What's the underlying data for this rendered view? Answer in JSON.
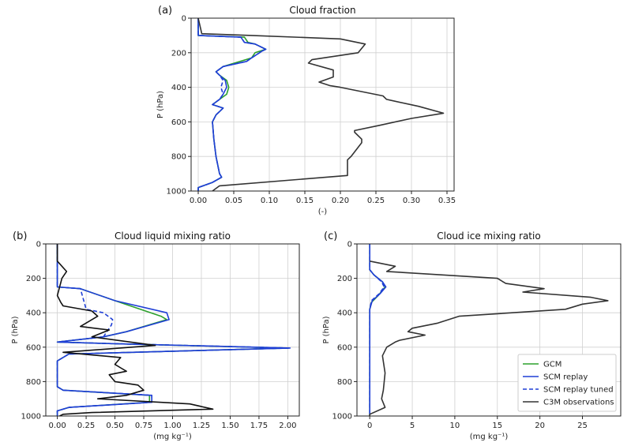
{
  "chart_data": [
    {
      "type": "line",
      "panel_label": "(a)",
      "title": "Cloud fraction",
      "xlabel": "(-)",
      "ylabel": "P (hPa)",
      "xlim": [
        -0.01,
        0.36
      ],
      "ylim": [
        1000,
        0
      ],
      "xticks": [
        0.0,
        0.05,
        0.1,
        0.15,
        0.2,
        0.25,
        0.3,
        0.35
      ],
      "xtick_labels": [
        "0.00",
        "0.05",
        "0.10",
        "0.15",
        "0.20",
        "0.25",
        "0.30",
        "0.35"
      ],
      "yticks": [
        0,
        200,
        400,
        600,
        800,
        1000
      ],
      "ytick_labels": [
        "0",
        "200",
        "400",
        "600",
        "800",
        "1000"
      ],
      "grid": true,
      "series": [
        {
          "key": "gcm",
          "color": "#2ca02c",
          "dash": false,
          "x": [
            0,
            0,
            0.065,
            0.07,
            0.08,
            0.095,
            0.08,
            0.075,
            0.035,
            0.025,
            0.03,
            0.04,
            0.043,
            0.04,
            0.03,
            0.02,
            0.035,
            0.03,
            0.025,
            0.02,
            0.022,
            0.025,
            0.03,
            0.033,
            0.02,
            0,
            0
          ],
          "y": [
            0,
            100,
            110,
            140,
            150,
            180,
            200,
            230,
            280,
            310,
            330,
            360,
            400,
            440,
            470,
            500,
            520,
            540,
            560,
            600,
            700,
            800,
            900,
            920,
            950,
            980,
            1000
          ]
        },
        {
          "key": "scm",
          "color": "#1f3fd6",
          "dash": false,
          "x": [
            0,
            0,
            0.06,
            0.065,
            0.08,
            0.095,
            0.09,
            0.075,
            0.068,
            0.035,
            0.025,
            0.03,
            0.038,
            0.04,
            0.035,
            0.03,
            0.02,
            0.035,
            0.03,
            0.025,
            0.02,
            0.022,
            0.025,
            0.03,
            0.033,
            0.02,
            0,
            0
          ],
          "y": [
            0,
            100,
            110,
            140,
            150,
            180,
            190,
            230,
            250,
            280,
            310,
            330,
            360,
            400,
            440,
            470,
            500,
            520,
            540,
            560,
            600,
            700,
            800,
            900,
            920,
            950,
            980,
            1000
          ]
        },
        {
          "key": "scm_tuned",
          "color": "#1f3fd6",
          "dash": true,
          "x": [
            0,
            0,
            0.06,
            0.065,
            0.08,
            0.095,
            0.09,
            0.075,
            0.068,
            0.035,
            0.025,
            0.03,
            0.035,
            0.032,
            0.035,
            0.03,
            0.02,
            0.035,
            0.03,
            0.025,
            0.02,
            0.022,
            0.025,
            0.03,
            0.033,
            0.02,
            0,
            0
          ],
          "y": [
            0,
            100,
            110,
            140,
            150,
            180,
            190,
            230,
            250,
            280,
            310,
            330,
            360,
            400,
            440,
            470,
            500,
            520,
            540,
            560,
            600,
            700,
            800,
            900,
            920,
            950,
            980,
            1000
          ]
        },
        {
          "key": "obs",
          "color": "#333333",
          "dash": false,
          "x": [
            0,
            0.005,
            0.075,
            0.2,
            0.235,
            0.225,
            0.16,
            0.155,
            0.19,
            0.19,
            0.17,
            0.185,
            0.2,
            0.26,
            0.265,
            0.31,
            0.345,
            0.3,
            0.255,
            0.22,
            0.22,
            0.23,
            0.23,
            0.215,
            0.21,
            0.21,
            0.21,
            0.03,
            0.02
          ],
          "y": [
            0,
            90,
            100,
            120,
            150,
            200,
            240,
            260,
            300,
            340,
            370,
            390,
            400,
            450,
            470,
            510,
            550,
            580,
            620,
            650,
            660,
            700,
            720,
            800,
            820,
            900,
            910,
            970,
            1000
          ]
        }
      ]
    },
    {
      "type": "line",
      "panel_label": "(b)",
      "title": "Cloud liquid mixing ratio",
      "xlabel": "(mg kg⁻¹)",
      "ylabel": "P (hPa)",
      "xlim": [
        -0.1,
        2.1
      ],
      "ylim": [
        1000,
        0
      ],
      "xticks": [
        0.0,
        0.25,
        0.5,
        0.75,
        1.0,
        1.25,
        1.5,
        1.75,
        2.0
      ],
      "xtick_labels": [
        "0.00",
        "0.25",
        "0.50",
        "0.75",
        "1.00",
        "1.25",
        "1.50",
        "1.75",
        "2.00"
      ],
      "yticks": [
        0,
        200,
        400,
        600,
        800,
        1000
      ],
      "ytick_labels": [
        "0",
        "200",
        "400",
        "600",
        "800",
        "1000"
      ],
      "grid": true,
      "series": [
        {
          "key": "gcm",
          "color": "#2ca02c",
          "dash": false,
          "x": [
            0,
            0,
            0.2,
            0.5,
            0.9,
            0.95,
            0.6,
            0.4,
            0,
            0.5,
            2.0,
            0.1,
            0,
            0,
            0.05,
            0.8,
            0.8,
            0.1,
            0,
            0
          ],
          "y": [
            0,
            250,
            260,
            330,
            420,
            440,
            510,
            540,
            570,
            580,
            605,
            640,
            680,
            830,
            850,
            880,
            920,
            950,
            970,
            1000
          ]
        },
        {
          "key": "scm",
          "color": "#1f3fd6",
          "dash": false,
          "x": [
            0,
            0,
            0.2,
            0.5,
            0.95,
            0.97,
            0.6,
            0.4,
            0,
            0.5,
            2.02,
            0.1,
            0,
            0,
            0.05,
            0.82,
            0.82,
            0.1,
            0,
            0
          ],
          "y": [
            0,
            250,
            260,
            330,
            400,
            440,
            510,
            540,
            570,
            580,
            605,
            640,
            680,
            830,
            850,
            880,
            920,
            950,
            970,
            1000
          ]
        },
        {
          "key": "scm_tuned",
          "color": "#1f3fd6",
          "dash": true,
          "x": [
            0,
            0,
            0.2,
            0.25,
            0.4,
            0.48,
            0.47,
            0.4,
            0,
            0.5,
            2.02,
            0.1,
            0,
            0,
            0.05,
            0.82,
            0.82,
            0.1,
            0,
            0
          ],
          "y": [
            0,
            250,
            260,
            380,
            400,
            440,
            470,
            540,
            570,
            580,
            605,
            640,
            680,
            830,
            850,
            880,
            920,
            950,
            970,
            1000
          ]
        },
        {
          "key": "obs",
          "color": "#111111",
          "dash": false,
          "x": [
            0,
            0,
            0.08,
            0.04,
            0.02,
            0,
            0.03,
            0.05,
            0.3,
            0.35,
            0.2,
            0.45,
            0.3,
            0.85,
            0.05,
            0.55,
            0.5,
            0.55,
            0.6,
            0.45,
            0.5,
            0.7,
            0.75,
            0.6,
            0.35,
            1.15,
            1.35,
            0.3,
            0.05,
            0.02
          ],
          "y": [
            0,
            100,
            160,
            200,
            250,
            300,
            340,
            360,
            390,
            420,
            480,
            500,
            540,
            590,
            630,
            660,
            700,
            720,
            740,
            760,
            800,
            820,
            850,
            880,
            900,
            930,
            960,
            980,
            990,
            1000
          ]
        }
      ]
    },
    {
      "type": "line",
      "panel_label": "(c)",
      "title": "Cloud ice mixing ratio",
      "xlabel": "(mg kg⁻¹)",
      "ylabel": "P (hPa)",
      "xlim": [
        -1.5,
        29.5
      ],
      "ylim": [
        1000,
        0
      ],
      "xticks": [
        0,
        5,
        10,
        15,
        20,
        25
      ],
      "xtick_labels": [
        "0",
        "5",
        "10",
        "15",
        "20",
        "25"
      ],
      "yticks": [
        0,
        200,
        400,
        600,
        800,
        1000
      ],
      "ytick_labels": [
        "0",
        "200",
        "400",
        "600",
        "800",
        "1000"
      ],
      "grid": true,
      "legend_position": "lower-right",
      "series": [
        {
          "key": "gcm",
          "name": "GCM",
          "color": "#2ca02c",
          "dash": false,
          "x": [
            0,
            0,
            0.5,
            1.5,
            1.8,
            1.0,
            0.2,
            0,
            0
          ],
          "y": [
            0,
            150,
            180,
            220,
            250,
            300,
            340,
            380,
            1000
          ]
        },
        {
          "key": "scm",
          "name": "SCM replay",
          "color": "#1f3fd6",
          "dash": false,
          "x": [
            0,
            0,
            0.5,
            1.5,
            1.9,
            1.2,
            0.3,
            0,
            0
          ],
          "y": [
            0,
            150,
            180,
            220,
            250,
            290,
            330,
            380,
            1000
          ]
        },
        {
          "key": "scm_tuned",
          "name": "SCM replay tuned",
          "color": "#1f3fd6",
          "dash": true,
          "x": [
            0,
            0,
            0.5,
            1.4,
            1.7,
            1.1,
            0.2,
            0,
            0
          ],
          "y": [
            0,
            150,
            180,
            220,
            250,
            290,
            330,
            380,
            1000
          ]
        },
        {
          "key": "obs",
          "name": "C3M observations",
          "color": "#333333",
          "dash": false,
          "x": [
            0,
            3,
            2,
            15,
            16,
            20.5,
            18,
            26,
            28,
            25,
            23,
            10.5,
            8,
            5,
            4.5,
            6.5,
            3.5,
            3,
            2,
            1.5,
            1.8,
            1.6,
            1.4,
            1.8,
            0,
            0
          ],
          "y": [
            100,
            130,
            160,
            200,
            230,
            260,
            280,
            310,
            330,
            350,
            380,
            420,
            460,
            490,
            510,
            530,
            560,
            570,
            600,
            650,
            750,
            850,
            900,
            950,
            990,
            1000
          ]
        }
      ]
    }
  ]
}
